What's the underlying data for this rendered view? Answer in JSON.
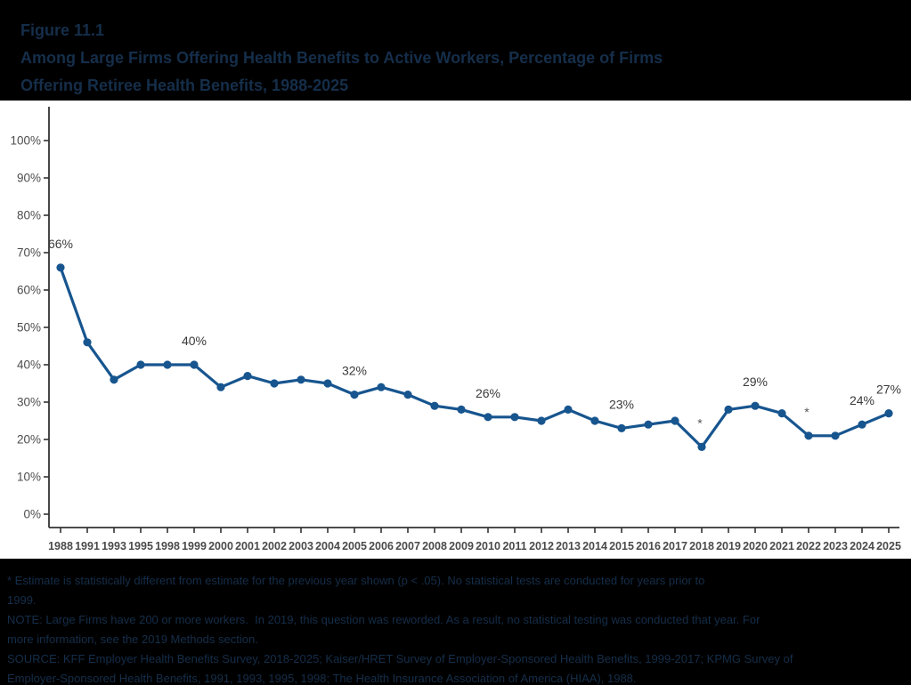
{
  "title": {
    "figure_label": "Figure 11.1",
    "line1": "Among Large Firms Offering Health Benefits to Active Workers, Percentage of Firms",
    "line2": "Offering Retiree Health Benefits, 1988-2025"
  },
  "chart_data": {
    "type": "line",
    "title": "Among Large Firms Offering Health Benefits to Active Workers, Percentage of Firms Offering Retiree Health Benefits, 1988-2025",
    "x": [
      "1988",
      "1991",
      "1993",
      "1995",
      "1998",
      "1999",
      "2000",
      "2001",
      "2002",
      "2003",
      "2004",
      "2005",
      "2006",
      "2007",
      "2008",
      "2009",
      "2010",
      "2011",
      "2012",
      "2013",
      "2014",
      "2015",
      "2016",
      "2017",
      "2018",
      "2019",
      "2020",
      "2021",
      "2022",
      "2023",
      "2024",
      "2025"
    ],
    "series": [
      {
        "name": "Percentage of firms offering retiree health benefits",
        "values": [
          66,
          46,
          36,
          40,
          40,
          40,
          34,
          37,
          35,
          36,
          35,
          32,
          34,
          32,
          29,
          28,
          26,
          26,
          25,
          28,
          25,
          23,
          24,
          25,
          18,
          28,
          29,
          27,
          21,
          21,
          24,
          27
        ]
      }
    ],
    "point_labels": [
      {
        "x": "1988",
        "label": "66%"
      },
      {
        "x": "1999",
        "label": "40%"
      },
      {
        "x": "2005",
        "label": "32%"
      },
      {
        "x": "2010",
        "label": "26%"
      },
      {
        "x": "2015",
        "label": "23%"
      },
      {
        "x": "2020",
        "label": "29%"
      },
      {
        "x": "2024",
        "label": "24%"
      },
      {
        "x": "2025",
        "label": "27%"
      }
    ],
    "asterisk_points": [
      "2018",
      "2022"
    ],
    "asterisk_symbol": "*",
    "ylim": [
      0,
      100
    ],
    "ytick_step": 10,
    "ytick_labels": [
      "0%",
      "10%",
      "20%",
      "30%",
      "40%",
      "50%",
      "60%",
      "70%",
      "80%",
      "90%",
      "100%"
    ],
    "grid": false,
    "legend": "none",
    "colors": {
      "line": "#17558f",
      "marker": "#17558f",
      "axis": "#333333",
      "ytick_label": "#4d4d4d",
      "xtick_label": "#4a4a4a",
      "value_label": "#3a3a3a",
      "asterisk": "#555555",
      "panel_bg": "#ffffff",
      "page_bg": "#000000",
      "heading_text": "#152e4a"
    }
  },
  "footnotes": {
    "lines": [
      "* Estimate is statistically different from estimate for the previous year shown (p < .05). No statistical tests are conducted for years prior to",
      "1999.",
      "NOTE: Large Firms have 200 or more workers.  In 2019, this question was reworded. As a result, no statistical testing was conducted that year. For",
      "more information, see the 2019 Methods section.",
      "SOURCE: KFF Employer Health Benefits Survey, 2018-2025; Kaiser/HRET Survey of Employer-Sponsored Health Benefits, 1999-2017; KPMG Survey of",
      "Employer-Sponsored Health Benefits, 1991, 1993, 1995, 1998; The Health Insurance Association of America (HIAA), 1988."
    ]
  }
}
